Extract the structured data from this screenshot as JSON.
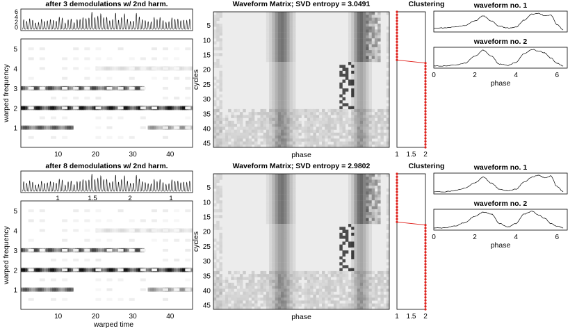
{
  "figure": {
    "row1": {
      "signal": {
        "title": "after 3 demodulations w/ 2nd harm.",
        "yticks": [
          "6",
          "4",
          "2",
          "0"
        ],
        "xticks": [],
        "xlabel": ""
      },
      "spectrogram": {
        "xlabel": "",
        "ylabel": "warped frequency",
        "xticks": [
          "10",
          "20",
          "30",
          "40"
        ],
        "yticks": [
          "5",
          "4",
          "3",
          "2",
          "1"
        ]
      },
      "matrix": {
        "title": "Waveform Matrix; SVD entropy = 3.0491",
        "xlabel": "phase",
        "ylabel": "cycles",
        "yticks": [
          "5",
          "10",
          "15",
          "20",
          "25",
          "30",
          "35",
          "40",
          "45"
        ]
      },
      "clustering": {
        "title": "Clustering",
        "xticks": [
          "1",
          "1.5",
          "2"
        ]
      },
      "wave1": {
        "title": "waveform no. 1"
      },
      "wave2": {
        "title": "waveform no. 2",
        "xlabel": "phase",
        "xticks": [
          "0",
          "2",
          "4",
          "6"
        ]
      }
    },
    "row2": {
      "signal": {
        "title": "after 8 demodulations w/ 2nd harm.",
        "yticks": [],
        "xticks": [
          "1",
          "1.5",
          "2",
          "1"
        ],
        "xlabel": "warped time"
      },
      "spectrogram": {
        "xlabel": "warped time",
        "ylabel": "warped frequency",
        "xticks": [
          "10",
          "20",
          "30",
          "40"
        ],
        "yticks": [
          "5",
          "4",
          "3",
          "2",
          "1"
        ]
      },
      "matrix": {
        "title": "Waveform Matrix; SVD entropy = 2.9802",
        "xlabel": "phase",
        "ylabel": "cycles",
        "yticks": [
          "5",
          "10",
          "15",
          "20",
          "25",
          "30",
          "35",
          "40",
          "45"
        ]
      },
      "clustering": {
        "title": "Clustering",
        "xticks": [
          "1",
          "1.5",
          "2"
        ]
      },
      "wave1": {
        "title": "waveform no. 1"
      },
      "wave2": {
        "title": "waveform no. 2",
        "xlabel": "phase",
        "xticks": [
          "0",
          "2",
          "4",
          "6"
        ]
      }
    }
  },
  "chart_data": [
    {
      "type": "line",
      "panel": "row1-signal",
      "title": "after 3 demodulations w/ 2nd harm.",
      "ylim": [
        0,
        6
      ],
      "description_series": "oscillatory signal, ~57 cycles, peak amplitude ~3-6"
    },
    {
      "type": "heatmap",
      "panel": "row1-spectrogram",
      "xlabel": "",
      "ylabel": "warped frequency",
      "xlim": [
        0,
        46
      ],
      "ylim": [
        0,
        5.5
      ],
      "bands": [
        {
          "freq": 1,
          "segments": [
            [
              0,
              14,
              0.7
            ],
            [
              34,
              46,
              0.45
            ]
          ]
        },
        {
          "freq": 2,
          "segments": [
            [
              0,
              46,
              0.95
            ]
          ]
        },
        {
          "freq": 3,
          "segments": [
            [
              0,
              33,
              0.75
            ]
          ]
        },
        {
          "freq": 4,
          "segments": [
            [
              20,
              46,
              0.15
            ]
          ]
        }
      ]
    },
    {
      "type": "heatmap",
      "panel": "row1-matrix",
      "title": "Waveform Matrix; SVD entropy = 3.0491",
      "xlabel": "phase",
      "ylabel": "cycles",
      "ylim": [
        1,
        46
      ]
    },
    {
      "type": "scatter",
      "panel": "row1-clustering",
      "title": "Clustering",
      "xlim": [
        1,
        2
      ],
      "ylim": [
        1,
        46
      ],
      "x": [
        1,
        1,
        1,
        1,
        1,
        1,
        1,
        1,
        1,
        1,
        1,
        1,
        1,
        1,
        1,
        1,
        1,
        2,
        2,
        2,
        2,
        2,
        2,
        2,
        2,
        2,
        2,
        2,
        2,
        2,
        2,
        2,
        2,
        2,
        2,
        2,
        2,
        2,
        2,
        2,
        2,
        2,
        2,
        2,
        2,
        2
      ],
      "y": [
        1,
        2,
        3,
        4,
        5,
        6,
        7,
        8,
        9,
        10,
        11,
        12,
        13,
        14,
        15,
        16,
        17,
        18,
        19,
        20,
        21,
        22,
        23,
        24,
        25,
        26,
        27,
        28,
        29,
        30,
        31,
        32,
        33,
        34,
        35,
        36,
        37,
        38,
        39,
        40,
        41,
        42,
        43,
        44,
        45,
        46
      ]
    },
    {
      "type": "line",
      "panel": "row1-wave1",
      "title": "waveform no. 1",
      "xlim": [
        0,
        6.5
      ],
      "x": [
        0,
        0.5,
        1.0,
        1.5,
        2.0,
        2.4,
        2.8,
        3.2,
        3.6,
        4.0,
        4.4,
        4.8,
        5.1,
        5.4,
        5.7,
        6.0,
        6.3
      ],
      "y": [
        0.15,
        0.15,
        0.2,
        0.3,
        0.55,
        0.85,
        0.55,
        0.25,
        0.15,
        0.2,
        0.6,
        0.95,
        1.0,
        0.85,
        0.9,
        0.35,
        0.05
      ]
    },
    {
      "type": "line",
      "panel": "row1-wave2",
      "title": "waveform no. 2",
      "xlabel": "phase",
      "xlim": [
        0,
        6.5
      ],
      "x": [
        0,
        0.5,
        1.0,
        1.5,
        2.0,
        2.4,
        2.8,
        3.2,
        3.6,
        4.0,
        4.4,
        4.8,
        5.1,
        5.4,
        5.7,
        6.0,
        6.3
      ],
      "y": [
        0.05,
        0.05,
        0.1,
        0.2,
        0.6,
        0.95,
        0.6,
        0.15,
        0.08,
        0.25,
        0.75,
        1.0,
        0.9,
        0.8,
        0.5,
        0.2,
        0.05
      ]
    },
    {
      "type": "line",
      "panel": "row2-signal",
      "title": "after 8 demodulations w/ 2nd harm.",
      "xlabel": "warped time",
      "description_series": "oscillatory signal, ~55 cycles"
    },
    {
      "type": "heatmap",
      "panel": "row2-spectrogram",
      "xlabel": "warped time",
      "ylabel": "warped frequency",
      "xlim": [
        0,
        46
      ],
      "ylim": [
        0,
        5.5
      ],
      "bands": [
        {
          "freq": 1,
          "segments": [
            [
              0,
              14,
              0.7
            ],
            [
              34,
              46,
              0.45
            ]
          ]
        },
        {
          "freq": 2,
          "segments": [
            [
              0,
              46,
              0.95
            ]
          ]
        },
        {
          "freq": 3,
          "segments": [
            [
              0,
              33,
              0.75
            ]
          ]
        },
        {
          "freq": 4,
          "segments": [
            [
              20,
              46,
              0.15
            ]
          ]
        }
      ]
    },
    {
      "type": "heatmap",
      "panel": "row2-matrix",
      "title": "Waveform Matrix; SVD entropy = 2.9802",
      "xlabel": "phase",
      "ylabel": "cycles",
      "ylim": [
        1,
        46
      ]
    },
    {
      "type": "scatter",
      "panel": "row2-clustering",
      "title": "Clustering",
      "xlim": [
        1,
        2
      ],
      "ylim": [
        1,
        46
      ],
      "x": [
        1,
        1,
        1,
        1,
        1,
        1,
        1,
        1,
        1,
        1,
        1,
        1,
        1,
        1,
        1,
        1,
        1,
        2,
        2,
        2,
        2,
        2,
        2,
        2,
        2,
        2,
        2,
        2,
        2,
        2,
        2,
        2,
        2,
        2,
        2,
        2,
        2,
        2,
        2,
        2,
        2,
        2,
        2,
        2,
        2,
        2
      ],
      "y": [
        1,
        2,
        3,
        4,
        5,
        6,
        7,
        8,
        9,
        10,
        11,
        12,
        13,
        14,
        15,
        16,
        17,
        18,
        19,
        20,
        21,
        22,
        23,
        24,
        25,
        26,
        27,
        28,
        29,
        30,
        31,
        32,
        33,
        34,
        35,
        36,
        37,
        38,
        39,
        40,
        41,
        42,
        43,
        44,
        45,
        46
      ]
    },
    {
      "type": "line",
      "panel": "row2-wave1",
      "title": "waveform no. 1",
      "xlim": [
        0,
        6.5
      ],
      "x": [
        0,
        0.5,
        1.0,
        1.5,
        2.0,
        2.4,
        2.8,
        3.2,
        3.6,
        4.0,
        4.4,
        4.8,
        5.1,
        5.4,
        5.7,
        6.0,
        6.3
      ],
      "y": [
        0.05,
        0.05,
        0.1,
        0.25,
        0.55,
        0.9,
        0.55,
        0.2,
        0.1,
        0.2,
        0.6,
        0.9,
        1.0,
        0.85,
        0.95,
        0.35,
        0.05
      ]
    },
    {
      "type": "line",
      "panel": "row2-wave2",
      "title": "waveform no. 2",
      "xlabel": "phase",
      "xlim": [
        0,
        6.5
      ],
      "x": [
        0,
        0.5,
        1.0,
        1.5,
        2.0,
        2.4,
        2.8,
        3.2,
        3.6,
        4.0,
        4.4,
        4.8,
        5.1,
        5.4,
        5.7,
        6.0,
        6.3
      ],
      "y": [
        0.05,
        0.05,
        0.15,
        0.35,
        0.7,
        0.95,
        0.85,
        0.3,
        0.1,
        0.3,
        0.85,
        1.0,
        0.8,
        0.6,
        0.3,
        0.15,
        0.05
      ]
    }
  ]
}
